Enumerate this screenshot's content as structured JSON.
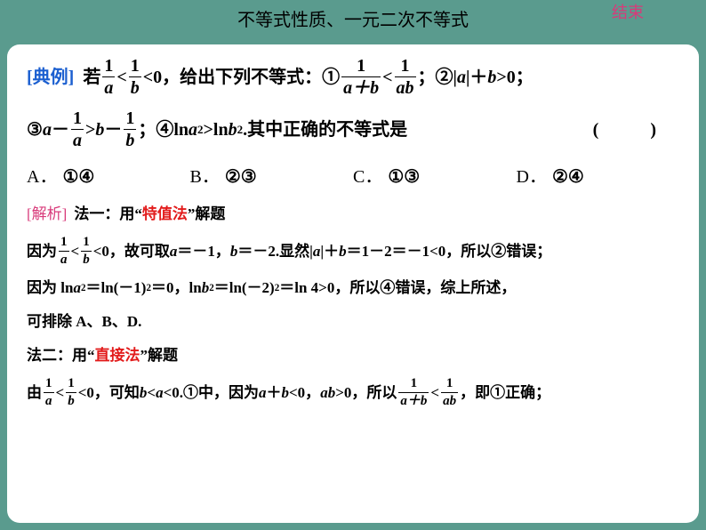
{
  "header": {
    "title": "不等式性质、一元二次不等式",
    "end": "结束"
  },
  "colors": {
    "bg": "#5a9b8e",
    "page": "#ffffff",
    "blue": "#1b5fd0",
    "pink": "#d83a7a",
    "red": "#e21b1b",
    "black": "#000000"
  },
  "problem": {
    "dianli": "[典例]",
    "txt1": "若",
    "lt1": "<",
    "lt0": "<0，给出下列不等式：①",
    "lt2": "<",
    "txt2": "；②|",
    "a": "a",
    "txt3": "|＋",
    "b": "b",
    "gt0": ">0；",
    "line2a": "③",
    "minus": "－",
    "gt": ">",
    "l2b": "；④ln ",
    "sq": "2",
    "l2c": ">ln ",
    "l2d": ".其中正确的不等式是",
    "paren": "(　　)"
  },
  "fracs": {
    "one": "1",
    "a": "a",
    "b": "b",
    "apb": "a＋b",
    "ab": "ab"
  },
  "options": {
    "A": {
      "lbl": "A．",
      "val": "①④"
    },
    "B": {
      "lbl": "B．",
      "val": "②③"
    },
    "C": {
      "lbl": "C．",
      "val": "①③"
    },
    "D": {
      "lbl": "D．",
      "val": "②④"
    }
  },
  "solution": {
    "jiexi": "[解析]",
    "m1a": "法一：用",
    "m1q1": "“",
    "m1red": "特值法",
    "m1q2": "”",
    "m1b": "解题",
    "s1a": "因为",
    "s1b": "<",
    "s1c": "<0，故可取 ",
    "s1d": "＝－1，",
    "s1e": "＝－2.显然|",
    "s1f": "|＋",
    "s1g": "＝1－2＝－1<0，所以②错误；",
    "s2a": "因为 ln ",
    "s2b": "＝ln(－1)",
    "s2c": "＝0，ln ",
    "s2d": "＝ln(－2)",
    "s2e": "＝ln 4>0，所以④错误，综上所述，",
    "s3": "可排除 A、B、D.",
    "m2a": "法二：用",
    "m2q1": "“",
    "m2red": "直接法",
    "m2q2": "”",
    "m2b": "解题",
    "s4a": "由",
    "s4b": "<",
    "s4c": "<0，可知 ",
    "s4d": "<",
    "s4e": "<0.①中，因为 ",
    "s4f": "＋",
    "s4g": "<0，",
    "s4h": ">0，所以",
    "s4i": "<",
    "s4j": "，即①正确；"
  }
}
